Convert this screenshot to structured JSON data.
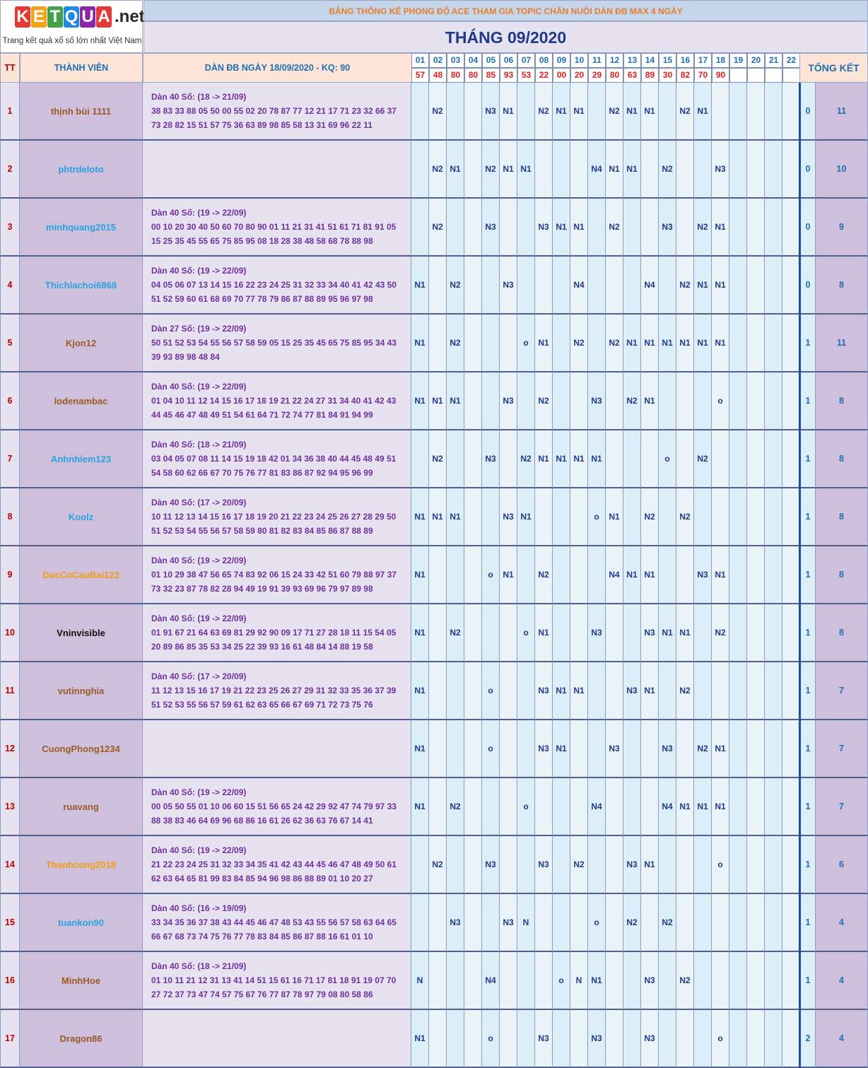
{
  "brand": {
    "letters": [
      {
        "ch": "K",
        "color": "#e53935"
      },
      {
        "ch": "E",
        "color": "#f4a21b"
      },
      {
        "ch": "T",
        "color": "#43a047"
      },
      {
        "ch": "Q",
        "color": "#1e88e5"
      },
      {
        "ch": "U",
        "color": "#8e24aa"
      },
      {
        "ch": "A",
        "color": "#e53935"
      }
    ],
    "suffix": ".net",
    "tagline": "Trang kết quả xổ số lớn nhất Việt Nam"
  },
  "title": "BẢNG THỐNG KÊ PHONG ĐỘ ACE THAM GIA TOPIC CHĂN NUÔI DÀN ĐB MAX 4 NGÀY",
  "month": "THÁNG 09/2020",
  "headers": {
    "tt": "TT",
    "member": "THÀNH VIÊN",
    "dan": "DÀN ĐB NGÀY 18/09/2020 - KQ: 90",
    "summary": "TỔNG KẾT"
  },
  "days": [
    "01",
    "02",
    "03",
    "04",
    "05",
    "06",
    "07",
    "08",
    "09",
    "10",
    "11",
    "12",
    "13",
    "14",
    "15",
    "16",
    "17",
    "18",
    "19",
    "20",
    "21",
    "22"
  ],
  "results": [
    "57",
    "48",
    "80",
    "80",
    "85",
    "93",
    "53",
    "22",
    "00",
    "20",
    "29",
    "80",
    "63",
    "89",
    "30",
    "82",
    "70",
    "90",
    "",
    "",
    "",
    ""
  ],
  "colors": {
    "brown": "#9c5a26",
    "blue": "#29a3e0",
    "orange": "#f39c12",
    "black": "#111111",
    "dayA": "#dceef7",
    "dayB": "#eaf3f8"
  },
  "rows": [
    {
      "tt": "1",
      "name": "thịnh bùi 1111",
      "color": "brown",
      "dan": [
        "Dàn 40 Số: (18 -> 21/09)",
        "38 83 33 88 05 50 00 55 02 20 78 87 77 12 21 17 71 23 32 66 37",
        "73 28 82 15 51 57 75 36 63 89 98 85 58 13 31 69 96 22 11"
      ],
      "cells": [
        "",
        "N2",
        "",
        "",
        "N3",
        "N1",
        "",
        "N2",
        "N1",
        "N1",
        "",
        "N2",
        "N1",
        "N1",
        "",
        "N2",
        "N1",
        "",
        "",
        "",
        "",
        ""
      ],
      "a": "0",
      "b": "11"
    },
    {
      "tt": "2",
      "name": "phtrdeloto",
      "color": "blue",
      "dan": [
        "",
        "",
        ""
      ],
      "cells": [
        "",
        "N2",
        "N1",
        "",
        "N2",
        "N1",
        "N1",
        "",
        "",
        "",
        "N4",
        "N1",
        "N1",
        "",
        "N2",
        "",
        "",
        "N3",
        "",
        "",
        "",
        ""
      ],
      "a": "0",
      "b": "10"
    },
    {
      "tt": "3",
      "name": "minhquang2015",
      "color": "blue",
      "dan": [
        "Dàn 40 Số: (19 -> 22/09)",
        "00 10 20 30 40 50 60 70 80 90 01 11 21 31 41 51 61 71 81 91 05",
        "15 25 35 45 55 65 75 85 95 08 18 28 38 48 58 68 78 88 98"
      ],
      "cells": [
        "",
        "N2",
        "",
        "",
        "N3",
        "",
        "",
        "N3",
        "N1",
        "N1",
        "",
        "N2",
        "",
        "",
        "N3",
        "",
        "N2",
        "N1",
        "",
        "",
        "",
        ""
      ],
      "a": "0",
      "b": "9"
    },
    {
      "tt": "4",
      "name": "Thichlachoi6868",
      "color": "blue",
      "dan": [
        "Dàn 40 Số: (19 -> 22/09)",
        "04 05 06 07 13 14 15 16 22 23 24 25 31 32 33 34 40 41 42 43 50",
        "51 52 59 60 61 68 69 70 77 78 79 86 87 88 89 95 96 97 98"
      ],
      "cells": [
        "N1",
        "",
        "N2",
        "",
        "",
        "N3",
        "",
        "",
        "",
        "N4",
        "",
        "",
        "",
        "N4",
        "",
        "N2",
        "N1",
        "N1",
        "",
        "",
        "",
        ""
      ],
      "a": "0",
      "b": "8"
    },
    {
      "tt": "5",
      "name": "Kjon12",
      "color": "brown",
      "dan": [
        "Dàn 27 Số: (19 -> 22/09)",
        "50 51 52 53 54 55 56 57 58 59 05 15 25 35 45 65 75 85 95 34 43",
        "39 93 89 98 48 84"
      ],
      "cells": [
        "N1",
        "",
        "N2",
        "",
        "",
        "",
        "o",
        "N1",
        "",
        "N2",
        "",
        "N2",
        "N1",
        "N1",
        "N1",
        "N1",
        "N1",
        "N1",
        "",
        "",
        "",
        ""
      ],
      "a": "1",
      "b": "11"
    },
    {
      "tt": "6",
      "name": "lodenambac",
      "color": "brown",
      "dan": [
        "Dàn 40 Số: (19 -> 22/09)",
        "01 04 10 11 12 14 15 16 17 18 19 21 22 24 27 31 34 40 41 42 43",
        "44 45 46 47 48 49 51 54 61 64 71 72 74 77 81 84 91 94 99"
      ],
      "cells": [
        "N1",
        "N1",
        "N1",
        "",
        "",
        "N3",
        "",
        "N2",
        "",
        "",
        "N3",
        "",
        "N2",
        "N1",
        "",
        "",
        "",
        "o",
        "",
        "",
        "",
        ""
      ],
      "a": "1",
      "b": "8"
    },
    {
      "tt": "7",
      "name": "Anhnhiem123",
      "color": "blue",
      "dan": [
        "Dàn 40 Số: (18 -> 21/09)",
        "03 04 05 07 08 11 14 15 19 18 42 01 34 36 38 40 44 45 48 49 51",
        "54 58 60 62 66 67 70 75 76 77 81 83 86 87 92 94 95 96 99"
      ],
      "cells": [
        "",
        "N2",
        "",
        "",
        "N3",
        "",
        "N2",
        "N1",
        "N1",
        "N1",
        "N1",
        "",
        "",
        "",
        "o",
        "",
        "N2",
        "",
        "",
        "",
        "",
        ""
      ],
      "a": "1",
      "b": "8"
    },
    {
      "tt": "8",
      "name": "Koolz",
      "color": "blue",
      "dan": [
        "Dàn 40 Số: (17 -> 20/09)",
        "10 11 12 13 14 15 16 17 18 19 20 21 22 23 24 25 26 27 28 29 50",
        "51 52 53 54 55 56 57 58 59 80 81 82 83 84 85 86 87 88 89"
      ],
      "cells": [
        "N1",
        "N1",
        "N1",
        "",
        "",
        "N3",
        "N1",
        "",
        "",
        "",
        "o",
        "N1",
        "",
        "N2",
        "",
        "N2",
        "",
        "",
        "",
        "",
        "",
        ""
      ],
      "a": "1",
      "b": "8"
    },
    {
      "tt": "9",
      "name": "DocCoCauBai123",
      "color": "orange",
      "dan": [
        "Dàn 40 Số: (19 -> 22/09)",
        "01 10 29 38 47 56 65 74 83 92 06 15 24 33 42 51 60 79 88 97 37",
        "73 32 23 87 78 82 28 94 49 19 91 39 93 69 96 79 97 89 98"
      ],
      "cells": [
        "N1",
        "",
        "",
        "",
        "o",
        "N1",
        "",
        "N2",
        "",
        "",
        "",
        "N4",
        "N1",
        "N1",
        "",
        "",
        "N3",
        "N1",
        "",
        "",
        "",
        ""
      ],
      "a": "1",
      "b": "8"
    },
    {
      "tt": "10",
      "name": "Vninvisible",
      "color": "black",
      "dan": [
        "Dàn 40 Số: (19 -> 22/09)",
        "01 91 67 21 64 63 69 81 29 92 90 09 17 71 27 28 18 11 15 54 05",
        "20 89 86 85 35 53 34 25 22 39 93 16 61 48 84 14 88 19 58"
      ],
      "cells": [
        "N1",
        "",
        "N2",
        "",
        "",
        "",
        "o",
        "N1",
        "",
        "",
        "N3",
        "",
        "",
        "N3",
        "N1",
        "N1",
        "",
        "N2",
        "",
        "",
        "",
        ""
      ],
      "a": "1",
      "b": "8"
    },
    {
      "tt": "11",
      "name": "vutinnghia",
      "color": "brown",
      "dan": [
        "Dàn 40 Số: (17 -> 20/09)",
        "11 12 13 15 16 17 19 21 22 23 25 26 27 29 31 32 33 35 36 37 39",
        "51 52 53 55 56 57 59 61 62 63 65 66 67 69 71 72 73 75 76"
      ],
      "cells": [
        "N1",
        "",
        "",
        "",
        "o",
        "",
        "",
        "N3",
        "N1",
        "N1",
        "",
        "",
        "N3",
        "N1",
        "",
        "N2",
        "",
        "",
        "",
        "",
        "",
        ""
      ],
      "a": "1",
      "b": "7"
    },
    {
      "tt": "12",
      "name": "CuongPhong1234",
      "color": "brown",
      "dan": [
        "",
        "",
        ""
      ],
      "cells": [
        "N1",
        "",
        "",
        "",
        "o",
        "",
        "",
        "N3",
        "N1",
        "",
        "",
        "N3",
        "",
        "",
        "N3",
        "",
        "N2",
        "N1",
        "",
        "",
        "",
        ""
      ],
      "a": "1",
      "b": "7"
    },
    {
      "tt": "13",
      "name": "ruavang",
      "color": "brown",
      "dan": [
        "Dàn 40 Số: (19 -> 22/09)",
        "00 05 50 55 01 10 06 60 15 51 56 65 24 42 29 92 47 74 79 97 33",
        "88 38 83 46 64 69 96 68 86 16 61 26 62 36 63 76 67 14 41"
      ],
      "cells": [
        "N1",
        "",
        "N2",
        "",
        "",
        "",
        "o",
        "",
        "",
        "",
        "N4",
        "",
        "",
        "",
        "N4",
        "N1",
        "N1",
        "N1",
        "",
        "",
        "",
        ""
      ],
      "a": "1",
      "b": "7"
    },
    {
      "tt": "14",
      "name": "Thanhcong2018",
      "color": "orange",
      "dan": [
        "Dàn 40 Số: (19 -> 22/09)",
        "21 22 23 24 25 31 32 33 34 35 41 42 43 44 45 46 47 48 49 50 61",
        "62 63 64 65 81 99 83 84 85 94 96 98 86 88 89 01 10 20 27"
      ],
      "cells": [
        "",
        "N2",
        "",
        "",
        "N3",
        "",
        "",
        "N3",
        "",
        "N2",
        "",
        "",
        "N3",
        "N1",
        "",
        "",
        "",
        "o",
        "",
        "",
        "",
        ""
      ],
      "a": "1",
      "b": "6"
    },
    {
      "tt": "15",
      "name": "tuankon90",
      "color": "blue",
      "dan": [
        "Dàn 40 Số: (16 -> 19/09)",
        "33 34 35 36 37 38 43 44 45 46 47 48 53 43 55 56 57 58 63 64 65",
        "66 67 68 73 74 75 76 77 78 83 84 85 86 87 88 16 61 01 10"
      ],
      "cells": [
        "",
        "",
        "N3",
        "",
        "",
        "N3",
        "N",
        "",
        "",
        "",
        "o",
        "",
        "N2",
        "",
        "N2",
        "",
        "",
        "",
        "",
        "",
        "",
        ""
      ],
      "a": "1",
      "b": "4"
    },
    {
      "tt": "16",
      "name": "MinhHoe",
      "color": "brown",
      "dan": [
        "Dàn 40 Số: (18 -> 21/09)",
        "01 10 11 21 12 31 13 41 14 51 15 61 16 71 17 81 18 91 19 07 70",
        "27 72 37 73 47 74 57 75 67 76 77 87 78 97 79 08 80 58 86"
      ],
      "cells": [
        "N",
        "",
        "",
        "",
        "N4",
        "",
        "",
        "",
        "o",
        "N",
        "N1",
        "",
        "",
        "N3",
        "",
        "N2",
        "",
        "",
        "",
        "",
        "",
        ""
      ],
      "a": "1",
      "b": "4"
    },
    {
      "tt": "17",
      "name": "Dragon86",
      "color": "brown",
      "dan": [
        "",
        "",
        ""
      ],
      "cells": [
        "N1",
        "",
        "",
        "",
        "o",
        "",
        "",
        "N3",
        "",
        "",
        "N3",
        "",
        "",
        "N3",
        "",
        "",
        "",
        "o",
        "",
        "",
        "",
        ""
      ],
      "a": "2",
      "b": "4"
    }
  ]
}
